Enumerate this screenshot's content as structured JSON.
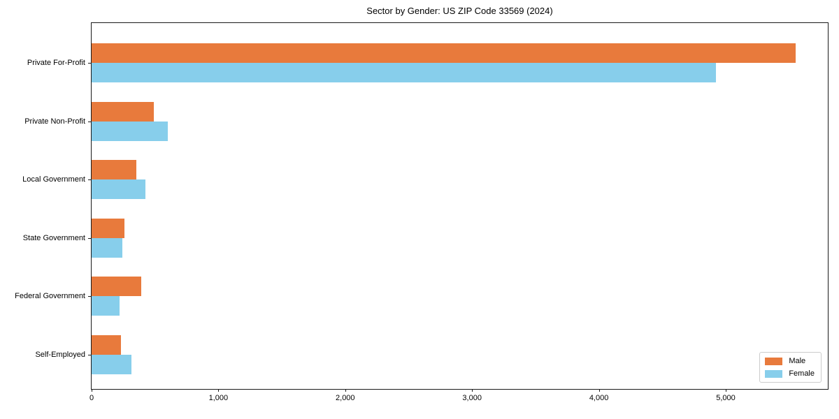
{
  "chart_data": {
    "type": "bar",
    "orientation": "horizontal",
    "title": "Sector by Gender: US ZIP Code 33569 (2024)",
    "categories": [
      "Private For-Profit",
      "Private Non-Profit",
      "Local Government",
      "State Government",
      "Federal Government",
      "Self-Employed"
    ],
    "series": [
      {
        "name": "Male",
        "color": "#E87A3C",
        "values": [
          5550,
          490,
          350,
          260,
          390,
          230
        ]
      },
      {
        "name": "Female",
        "color": "#87CEEB",
        "values": [
          4920,
          600,
          425,
          240,
          220,
          315
        ]
      }
    ],
    "xlabel": "",
    "ylabel": "",
    "xlim": [
      0,
      5816
    ],
    "xticks": [
      {
        "value": 0,
        "label": "0"
      },
      {
        "value": 1000,
        "label": "1,000"
      },
      {
        "value": 2000,
        "label": "2,000"
      },
      {
        "value": 3000,
        "label": "3,000"
      },
      {
        "value": 4000,
        "label": "4,000"
      },
      {
        "value": 5000,
        "label": "5,000"
      }
    ],
    "grid": false,
    "legend_position": "lower right",
    "legend_labels": [
      "Male",
      "Female"
    ]
  }
}
